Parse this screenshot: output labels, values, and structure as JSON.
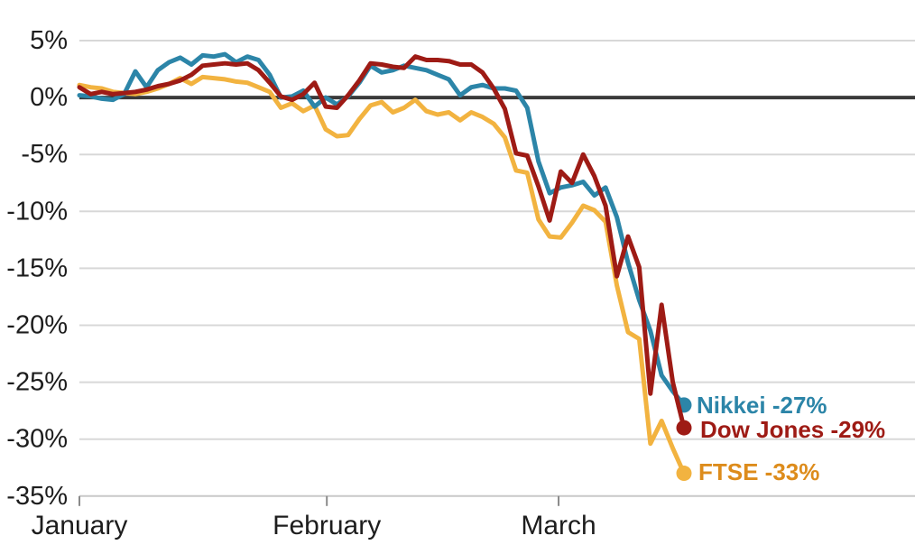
{
  "chart_data": {
    "type": "line",
    "title": "",
    "xlabel": "",
    "ylabel": "",
    "ylim": [
      -35,
      5
    ],
    "grid": "horizontal",
    "legend_position": "end-of-line labels at right of last data point",
    "ytick_labels": [
      "5%",
      "0%",
      "-5%",
      "-10%",
      "-15%",
      "-20%",
      "-25%",
      "-30%",
      "-35%"
    ],
    "x_months": [
      {
        "label": "January",
        "at_day": 0
      },
      {
        "label": "February",
        "at_day": 22.1
      },
      {
        "label": "March",
        "at_day": 42.8
      }
    ],
    "x_unit": "trading-day index (lines span day 0 to 54, axis continues empty to day 75)",
    "axis_total_days": 75,
    "zero_line_color": "#3a3a3a",
    "grid_color": "#d8d8d8",
    "axis_line_color": "#c8c8c8",
    "tick_color": "#8a8a8a",
    "text_color": "#1d1d1d",
    "series": [
      {
        "name": "FTSE",
        "end_label": "FTSE -33%",
        "final_pct": -33,
        "color": "#f2b340",
        "label_color": "#dd8c1c",
        "values": [
          1.1,
          0.9,
          0.8,
          0.5,
          0.4,
          0.3,
          0.5,
          0.8,
          1.2,
          1.7,
          1.2,
          1.8,
          1.7,
          1.6,
          1.4,
          1.3,
          0.9,
          0.5,
          -0.9,
          -0.5,
          -1.2,
          -0.7,
          -2.8,
          -3.4,
          -3.3,
          -1.9,
          -0.7,
          -0.4,
          -1.3,
          -0.9,
          -0.2,
          -1.2,
          -1.5,
          -1.3,
          -2.0,
          -1.3,
          -1.7,
          -2.3,
          -3.5,
          -6.4,
          -6.6,
          -10.7,
          -12.2,
          -12.3,
          -11.0,
          -9.5,
          -9.9,
          -10.9,
          -16.5,
          -20.6,
          -21.2,
          -30.4,
          -28.4,
          -30.8,
          -33.0
        ]
      },
      {
        "name": "Nikkei",
        "end_label": "Nikkei -27%",
        "final_pct": -27,
        "color": "#2c85a8",
        "label_color": "#2c85a8",
        "values": [
          0.2,
          0.1,
          -0.1,
          -0.2,
          0.3,
          2.3,
          0.9,
          2.4,
          3.1,
          3.5,
          2.9,
          3.7,
          3.6,
          3.8,
          3.1,
          3.6,
          3.3,
          2.0,
          0.0,
          0.1,
          0.6,
          -0.8,
          0.0,
          -0.6,
          0.1,
          1.3,
          2.8,
          2.2,
          2.4,
          2.8,
          2.6,
          2.4,
          2.0,
          1.6,
          0.2,
          0.9,
          1.1,
          0.8,
          0.8,
          0.6,
          -0.9,
          -5.6,
          -8.4,
          -7.9,
          -7.7,
          -7.4,
          -8.6,
          -7.9,
          -10.5,
          -14.5,
          -17.8,
          -20.5,
          -24.4,
          -25.8,
          -27.0
        ]
      },
      {
        "name": "Dow Jones",
        "end_label": "Dow Jones -29%",
        "final_pct": -29,
        "color": "#9e1b15",
        "label_color": "#9e1b15",
        "values": [
          0.9,
          0.3,
          0.5,
          0.3,
          0.4,
          0.5,
          0.7,
          1.0,
          1.2,
          1.5,
          2.0,
          2.8,
          2.9,
          3.0,
          2.9,
          3.0,
          2.4,
          1.3,
          0.1,
          -0.2,
          0.3,
          1.3,
          -0.8,
          -0.9,
          0.2,
          1.5,
          3.0,
          2.9,
          2.7,
          2.6,
          3.6,
          3.3,
          3.3,
          3.2,
          2.9,
          2.9,
          2.2,
          0.8,
          -1.0,
          -4.9,
          -5.1,
          -7.8,
          -10.8,
          -6.5,
          -7.5,
          -5.0,
          -6.9,
          -9.5,
          -15.7,
          -12.2,
          -14.9,
          -26.0,
          -18.2,
          -25.0,
          -29.0
        ]
      }
    ]
  }
}
